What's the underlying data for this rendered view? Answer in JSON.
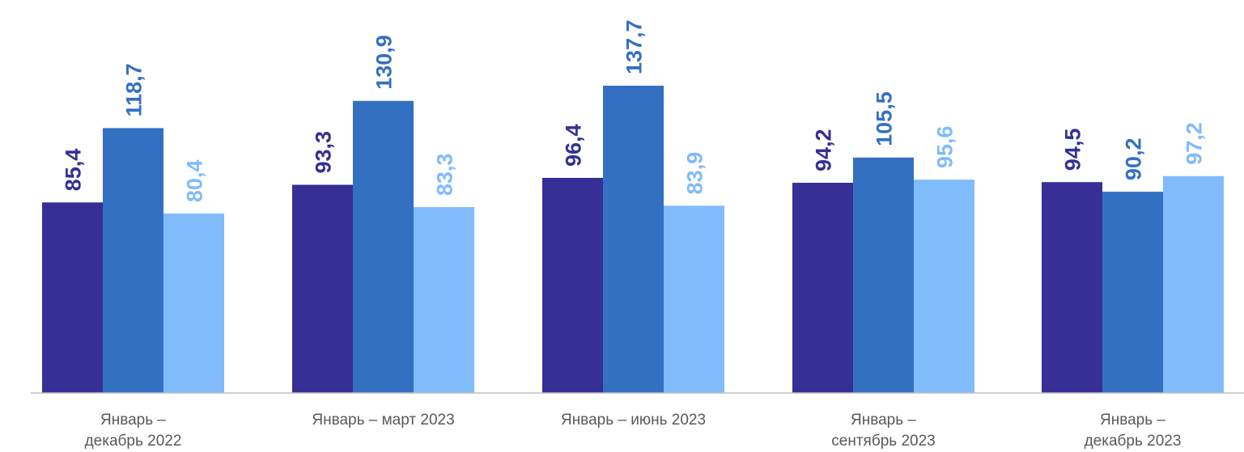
{
  "chart_data": {
    "type": "bar",
    "categories": [
      [
        "Январь –",
        "декабрь 2022"
      ],
      [
        "Январь – март  2023"
      ],
      [
        "Январь – июнь 2023"
      ],
      [
        "Январь –",
        "сентябрь 2023"
      ],
      [
        "Январь –",
        "декабрь 2023"
      ]
    ],
    "series": [
      {
        "color": "#352f96",
        "values": [
          85.4,
          93.3,
          96.4,
          94.2,
          94.5
        ],
        "labels": [
          "85,4",
          "93,3",
          "96,4",
          "94,2",
          "94,5"
        ]
      },
      {
        "color": "#3470c2",
        "values": [
          118.7,
          130.9,
          137.7,
          105.5,
          90.2
        ],
        "labels": [
          "118,7",
          "130,9",
          "137,7",
          "105,5",
          "90,2"
        ]
      },
      {
        "color": "#80bbfc",
        "values": [
          80.4,
          83.3,
          83.9,
          95.6,
          97.2
        ],
        "labels": [
          "80,4",
          "83,3",
          "83,9",
          "95,6",
          "97,2"
        ]
      }
    ],
    "title": "",
    "xlabel": "",
    "ylabel": "",
    "ylim": [
      0,
      137.7
    ],
    "grid": false,
    "legend": "none"
  }
}
